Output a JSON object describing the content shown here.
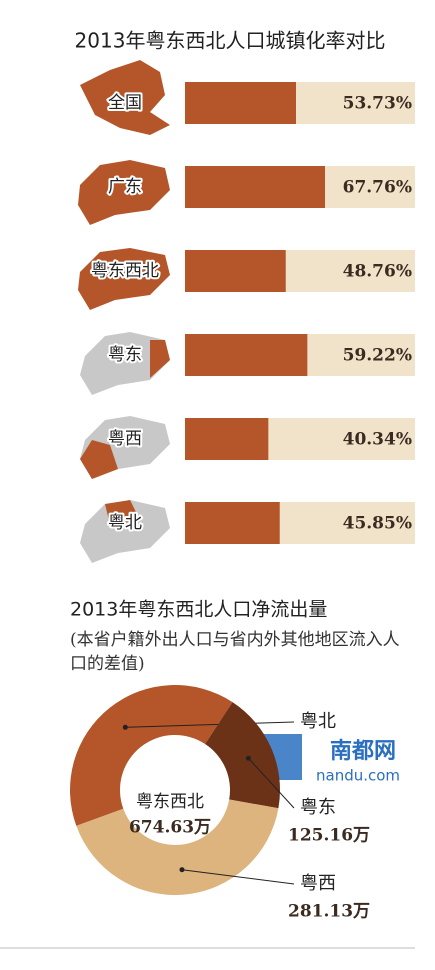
{
  "chart_data": [
    {
      "type": "bar",
      "title": "2013年粤东西北人口城镇化率对比",
      "categories": [
        "全国",
        "广东",
        "粤东西北",
        "粤东",
        "粤西",
        "粤北"
      ],
      "values": [
        53.73,
        67.76,
        48.76,
        59.22,
        40.34,
        45.85
      ],
      "value_labels": [
        "53.73%",
        "67.76%",
        "48.76%",
        "59.22%",
        "40.34%",
        "45.85%"
      ],
      "color": "#b5562a",
      "track_color": "#f1e3c9"
    },
    {
      "type": "donut",
      "title": "2013年粤东西北人口净流出量",
      "subtitle": "(本省户籍外出人口与省内外其他地区流入人口的差值)",
      "center_label": "粤东西北",
      "total": {
        "value": 674.63,
        "label": "674.63万"
      },
      "categories": [
        "粤北",
        "粤东",
        "粤西"
      ],
      "values": [
        268.34,
        125.16,
        281.13
      ],
      "value_labels": [
        null,
        "125.16万",
        "281.13万"
      ],
      "colors": [
        "#b5562a",
        "#6b3218",
        "#ddb47d"
      ]
    }
  ],
  "watermark": {
    "brand": "南都网",
    "url": "nandu.com"
  }
}
